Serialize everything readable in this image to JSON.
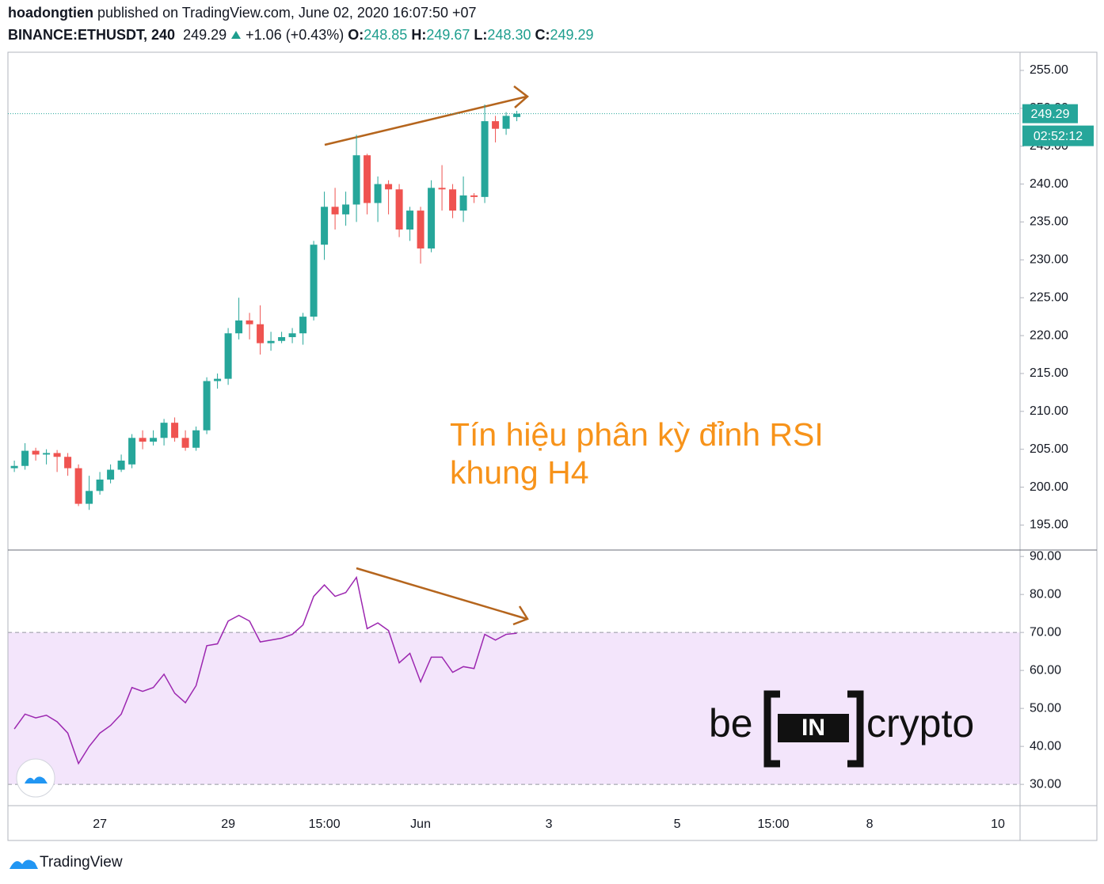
{
  "header": {
    "author": "hoadongtien",
    "published": "published on TradingView.com, June 02, 2020 16:07:50 +07",
    "symbol": "BINANCE:ETHUSDT, 240",
    "price": "249.29",
    "change": "+1.06 (+0.43%)",
    "ohlc": [
      {
        "label": "O:",
        "value": "248.85"
      },
      {
        "label": "H:",
        "value": "249.67"
      },
      {
        "label": "L:",
        "value": "248.30"
      },
      {
        "label": "C:",
        "value": "249.29"
      }
    ]
  },
  "chart_data": [
    {
      "type": "candlestick",
      "up_color": "#26a69a",
      "down_color": "#ef5350",
      "x": [
        0,
        1,
        2,
        3,
        4,
        5,
        6,
        7,
        8,
        9,
        10,
        11,
        12,
        13,
        14,
        15,
        16,
        17,
        18,
        19,
        20,
        21,
        22,
        23,
        24,
        25,
        26,
        27,
        28,
        29,
        30,
        31,
        32,
        33,
        34,
        35,
        36,
        37,
        38,
        39,
        40,
        41,
        42,
        43,
        44,
        45,
        46,
        47
      ],
      "open": [
        202.5,
        202.8,
        204.8,
        204.3,
        204.5,
        204.0,
        202.5,
        197.8,
        199.5,
        201.0,
        202.3,
        203.0,
        206.5,
        206.0,
        206.5,
        208.5,
        206.5,
        205.2,
        207.5,
        214.0,
        214.3,
        220.3,
        222.0,
        221.5,
        219.0,
        219.3,
        219.8,
        220.3,
        222.5,
        232.0,
        237.0,
        236.0,
        237.3,
        243.8,
        237.5,
        240.0,
        239.3,
        234.0,
        236.5,
        231.5,
        239.5,
        239.3,
        236.5,
        238.5,
        238.3,
        248.3,
        247.3,
        248.85
      ],
      "high": [
        203.5,
        205.8,
        205.2,
        205.0,
        204.9,
        204.5,
        203.0,
        201.5,
        202.0,
        203.0,
        204.3,
        207.0,
        207.5,
        207.5,
        209.0,
        209.2,
        207.5,
        208.0,
        214.5,
        215.0,
        221.0,
        225.0,
        223.0,
        224.0,
        220.5,
        220.5,
        221.0,
        223.0,
        232.5,
        239.0,
        239.5,
        239.0,
        246.5,
        244.0,
        241.0,
        240.5,
        240.0,
        237.0,
        237.0,
        240.5,
        242.5,
        240.0,
        241.0,
        238.8,
        250.5,
        249.0,
        249.5,
        249.67
      ],
      "low": [
        202.0,
        202.3,
        203.5,
        203.0,
        202.0,
        201.5,
        197.5,
        197.0,
        199.0,
        200.5,
        202.0,
        202.5,
        205.0,
        205.5,
        205.5,
        206.0,
        204.8,
        204.8,
        207.0,
        213.0,
        213.5,
        219.5,
        219.5,
        217.5,
        218.0,
        219.0,
        219.0,
        218.8,
        222.0,
        230.0,
        234.0,
        234.5,
        235.0,
        236.0,
        235.0,
        236.0,
        233.0,
        232.5,
        229.5,
        231.0,
        236.5,
        235.5,
        235.0,
        237.5,
        237.5,
        245.5,
        246.5,
        248.3
      ],
      "close": [
        202.8,
        204.8,
        204.3,
        204.5,
        204.0,
        202.5,
        197.8,
        199.5,
        201.0,
        202.3,
        203.5,
        206.5,
        206.0,
        206.5,
        208.5,
        206.5,
        205.2,
        207.5,
        214.0,
        214.3,
        220.3,
        222.0,
        221.5,
        219.0,
        219.3,
        219.8,
        220.3,
        222.5,
        232.0,
        237.0,
        236.0,
        237.3,
        243.8,
        237.5,
        240.0,
        239.3,
        234.0,
        236.5,
        231.5,
        239.5,
        239.3,
        236.5,
        238.5,
        238.3,
        248.3,
        247.3,
        249.0,
        249.29
      ],
      "xlim": [
        -0.6,
        94.07
      ],
      "ylim": [
        191.7,
        257.4
      ],
      "yticks": [
        {
          "value": 195,
          "label": "195.00"
        },
        {
          "value": 200,
          "label": "200.00"
        },
        {
          "value": 205,
          "label": "205.00"
        },
        {
          "value": 210,
          "label": "210.00"
        },
        {
          "value": 215,
          "label": "215.00"
        },
        {
          "value": 220,
          "label": "220.00"
        },
        {
          "value": 225,
          "label": "225.00"
        },
        {
          "value": 230,
          "label": "230.00"
        },
        {
          "value": 235,
          "label": "235.00"
        },
        {
          "value": 240,
          "label": "240.00"
        },
        {
          "value": 245,
          "label": "245.00"
        },
        {
          "value": 250,
          "label": "250.00"
        },
        {
          "value": 255,
          "label": "255.00"
        }
      ],
      "last_price": {
        "value": 249.29,
        "label": "249.29"
      },
      "countdown": "02:52:12",
      "price_line_color": "#26a69a",
      "annotation": [
        "Tín hiệu phân kỳ đỉnh RSI",
        "khung H4"
      ]
    },
    {
      "type": "line",
      "color": "#9c27b0",
      "band_color": "#f3e5fb",
      "levels": [
        30,
        70
      ],
      "x": [
        0,
        1,
        2,
        3,
        4,
        5,
        6,
        7,
        8,
        9,
        10,
        11,
        12,
        13,
        14,
        15,
        16,
        17,
        18,
        19,
        20,
        21,
        22,
        23,
        24,
        25,
        26,
        27,
        28,
        29,
        30,
        31,
        32,
        33,
        34,
        35,
        36,
        37,
        38,
        39,
        40,
        41,
        42,
        43,
        44,
        45,
        46,
        47
      ],
      "values": [
        44.6,
        48.5,
        47.5,
        48.2,
        46.5,
        43.5,
        35.5,
        40,
        43.5,
        45.5,
        48.5,
        55.5,
        54.5,
        55.5,
        59,
        54,
        51.5,
        56,
        66.5,
        67,
        73,
        74.5,
        73,
        67.5,
        68,
        68.5,
        69.5,
        72,
        79.5,
        82.5,
        79.5,
        80.5,
        84.5,
        71,
        72.5,
        70.5,
        62,
        64.5,
        57,
        63.5,
        63.5,
        59.5,
        61,
        60.5,
        69.5,
        68,
        69.5,
        69.8
      ],
      "xlim": [
        -0.6,
        94.07
      ],
      "ylim": [
        24.4,
        91.7
      ],
      "yticks": [
        {
          "value": 30,
          "label": "30.00"
        },
        {
          "value": 40,
          "label": "40.00"
        },
        {
          "value": 50,
          "label": "50.00"
        },
        {
          "value": 60,
          "label": "60.00"
        },
        {
          "value": 70,
          "label": "70.00"
        },
        {
          "value": 80,
          "label": "80.00"
        },
        {
          "value": 90,
          "label": "90.00"
        }
      ],
      "xticks": [
        {
          "value": 8,
          "label": "27"
        },
        {
          "value": 20,
          "label": "29"
        },
        {
          "value": 29,
          "label": "15:00"
        },
        {
          "value": 38,
          "label": "Jun"
        },
        {
          "value": 50,
          "label": "3"
        },
        {
          "value": 62,
          "label": "5"
        },
        {
          "value": 71,
          "label": "15:00"
        },
        {
          "value": 80,
          "label": "8"
        },
        {
          "value": 92,
          "label": "10"
        }
      ]
    }
  ],
  "watermark": {
    "left": "be",
    "mid": "IN",
    "right": "crypto"
  },
  "footer": "TradingView"
}
